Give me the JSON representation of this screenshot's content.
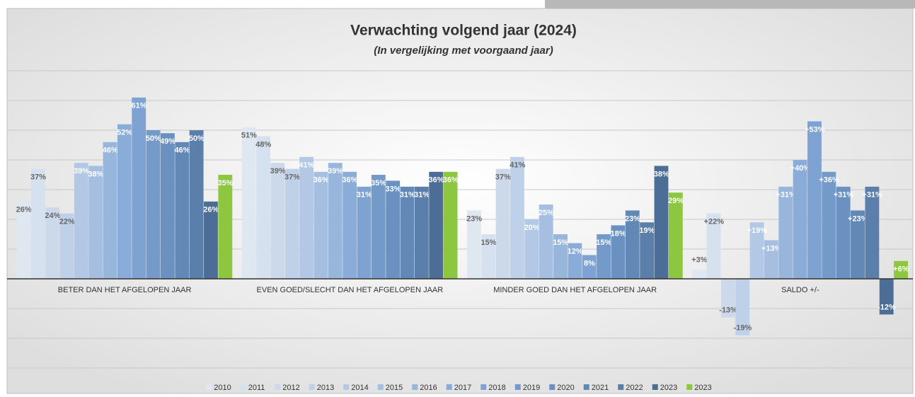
{
  "chart_data": {
    "type": "bar",
    "title": "Verwachting volgend jaar (2024)",
    "subtitle": "(In vergelijking met voorgaand jaar)",
    "categories": [
      "BETER DAN HET AFGELOPEN JAAR",
      "EVEN GOED/SLECHT DAN HET AFGELOPEN JAAR",
      "MINDER GOED DAN HET AFGELOPEN JAAR",
      "SALDO +/-"
    ],
    "ylim": [
      -30,
      70
    ],
    "yticks": [
      -30,
      -20,
      -10,
      0,
      10,
      20,
      30,
      40,
      50,
      60,
      70
    ],
    "grid": true,
    "legend": "bottom",
    "series": [
      {
        "name": "2010",
        "color": "#dfe7f1",
        "values": [
          26,
          51,
          23,
          3
        ],
        "value_labels": [
          "26%",
          "51%",
          "23%",
          "+3%"
        ]
      },
      {
        "name": "2011",
        "color": "#d6e1ef",
        "values": [
          37,
          48,
          15,
          22
        ],
        "value_labels": [
          "37%",
          "48%",
          "15%",
          "+22%"
        ]
      },
      {
        "name": "2012",
        "color": "#cbd9eb",
        "values": [
          24,
          39,
          37,
          -13
        ],
        "value_labels": [
          "24%",
          "39%",
          "37%",
          "-13%"
        ]
      },
      {
        "name": "2013",
        "color": "#bfd1e8",
        "values": [
          22,
          37,
          41,
          -19
        ],
        "value_labels": [
          "22%",
          "37%",
          "41%",
          "-19%"
        ]
      },
      {
        "name": "2014",
        "color": "#b2c8e4",
        "values": [
          39,
          41,
          20,
          19
        ],
        "value_labels": [
          "39%",
          "41%",
          "20%",
          "+19%"
        ]
      },
      {
        "name": "2015",
        "color": "#a6bfe0",
        "values": [
          38,
          36,
          25,
          13
        ],
        "value_labels": [
          "38%",
          "36%",
          "25%",
          "+13%"
        ]
      },
      {
        "name": "2016",
        "color": "#98b6dc",
        "values": [
          46,
          39,
          15,
          31
        ],
        "value_labels": [
          "46%",
          "39%",
          "15%",
          "+31%"
        ]
      },
      {
        "name": "2017",
        "color": "#8aacd8",
        "values": [
          52,
          36,
          12,
          40
        ],
        "value_labels": [
          "52%",
          "36%",
          "12%",
          "+40%"
        ]
      },
      {
        "name": "2018",
        "color": "#7ea3d2",
        "values": [
          61,
          31,
          8,
          53
        ],
        "value_labels": [
          "61%",
          "31%",
          "8%",
          "+53%"
        ]
      },
      {
        "name": "2019",
        "color": "#749ac9",
        "values": [
          50,
          35,
          15,
          36
        ],
        "value_labels": [
          "50%",
          "35%",
          "15%",
          "+36%"
        ]
      },
      {
        "name": "2020",
        "color": "#6b91c0",
        "values": [
          49,
          33,
          18,
          31
        ],
        "value_labels": [
          "49%",
          "33%",
          "18%",
          "+31%"
        ]
      },
      {
        "name": "2021",
        "color": "#6288b6",
        "values": [
          46,
          31,
          23,
          23
        ],
        "value_labels": [
          "46%",
          "31%",
          "23%",
          "+23%"
        ]
      },
      {
        "name": "2022",
        "color": "#5a7fab",
        "values": [
          50,
          31,
          19,
          31
        ],
        "value_labels": [
          "50%",
          "31%",
          "19%",
          "+31%"
        ]
      },
      {
        "name": "2023",
        "color": "#4c6d96",
        "values": [
          26,
          36,
          38,
          -12
        ],
        "value_labels": [
          "26%",
          "36%",
          "38%",
          "-12%"
        ]
      },
      {
        "name": "2023",
        "color": "#8dc63f",
        "values": [
          35,
          36,
          29,
          6
        ],
        "value_labels": [
          "35%",
          "36%",
          "29%",
          "+6%"
        ]
      }
    ]
  }
}
